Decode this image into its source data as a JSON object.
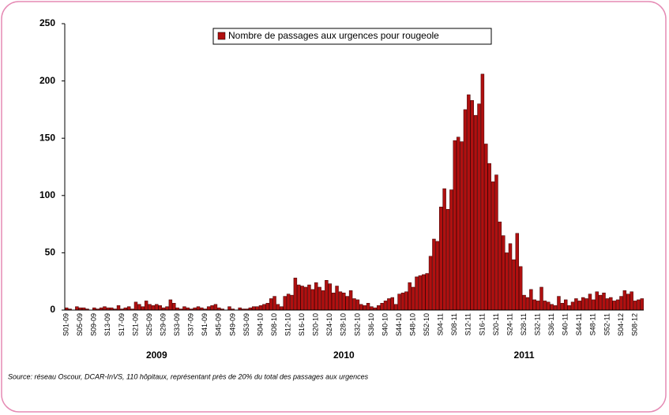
{
  "chart_data": {
    "type": "bar",
    "categories": [
      "S01-09",
      null,
      null,
      null,
      "S05-09",
      null,
      null,
      null,
      "S09-09",
      null,
      null,
      null,
      "S13-09",
      null,
      null,
      null,
      "S17-09",
      null,
      null,
      null,
      "S21-09",
      null,
      null,
      null,
      "S25-09",
      null,
      null,
      null,
      "S29-09",
      null,
      null,
      null,
      "S33-09",
      null,
      null,
      null,
      "S37-09",
      null,
      null,
      null,
      "S41-09",
      null,
      null,
      null,
      "S45-09",
      null,
      null,
      null,
      "S49-09",
      null,
      null,
      null,
      "S53-09",
      null,
      null,
      null,
      "S04-10",
      null,
      null,
      null,
      "S08-10",
      null,
      null,
      null,
      "S12-10",
      null,
      null,
      null,
      "S16-10",
      null,
      null,
      null,
      "S20-10",
      null,
      null,
      null,
      "S24-10",
      null,
      null,
      null,
      "S28-10",
      null,
      null,
      null,
      "S32-10",
      null,
      null,
      null,
      "S36-10",
      null,
      null,
      null,
      "S40-10",
      null,
      null,
      null,
      "S44-10",
      null,
      null,
      null,
      "S48-10",
      null,
      null,
      null,
      "S52-10",
      null,
      null,
      null,
      "S04-11",
      null,
      null,
      null,
      "S08-11",
      null,
      null,
      null,
      "S12-11",
      null,
      null,
      null,
      "S16-11",
      null,
      null,
      null,
      "S20-11",
      null,
      null,
      null,
      "S24-11",
      null,
      null,
      null,
      "S28-11",
      null,
      null,
      null,
      "S32-11",
      null,
      null,
      null,
      "S36-11",
      null,
      null,
      null,
      "S40-11",
      null,
      null,
      null,
      "S44-11",
      null,
      null,
      null,
      "S48-11",
      null,
      null,
      null,
      "S52-11",
      null,
      null,
      null,
      "S04-12",
      null,
      null,
      null,
      "S08-12",
      null,
      null
    ],
    "years": [
      "2009",
      "2010",
      "2011"
    ],
    "series": [
      {
        "name": "Nombre de passages aux urgences pour rougeole",
        "color": "#b01010",
        "values": [
          2,
          1,
          0,
          3,
          2,
          2,
          1,
          0,
          2,
          1,
          2,
          3,
          2,
          2,
          1,
          4,
          1,
          2,
          3,
          1,
          7,
          5,
          3,
          8,
          5,
          4,
          5,
          4,
          2,
          3,
          9,
          6,
          2,
          1,
          3,
          2,
          1,
          2,
          3,
          2,
          1,
          3,
          4,
          5,
          2,
          1,
          0,
          3,
          1,
          0,
          2,
          1,
          1,
          2,
          3,
          3,
          4,
          5,
          6,
          10,
          12,
          5,
          3,
          12,
          14,
          13,
          28,
          22,
          21,
          20,
          22,
          18,
          24,
          20,
          17,
          26,
          23,
          15,
          21,
          16,
          15,
          12,
          17,
          10,
          9,
          5,
          4,
          6,
          3,
          2,
          4,
          6,
          8,
          10,
          11,
          5,
          14,
          15,
          16,
          24,
          20,
          29,
          30,
          31,
          32,
          47,
          62,
          60,
          90,
          106,
          88,
          105,
          148,
          151,
          147,
          175,
          188,
          183,
          170,
          180,
          206,
          145,
          128,
          112,
          118,
          77,
          65,
          50,
          58,
          44,
          67,
          38,
          13,
          11,
          18,
          9,
          8,
          20,
          8,
          7,
          5,
          4,
          12,
          6,
          9,
          4,
          7,
          10,
          8,
          11,
          10,
          14,
          9,
          16,
          13,
          15,
          10,
          11,
          8,
          9,
          12,
          17,
          14,
          16,
          8,
          9,
          10
        ]
      }
    ],
    "ylim": [
      0,
      250
    ],
    "yticks": [
      0,
      50,
      100,
      150,
      200,
      250
    ],
    "grid": false,
    "source": "Source: réseau Oscour, DCAR-InVS, 110 hôpitaux, représentant près de 20% du total des passages aux urgences"
  }
}
